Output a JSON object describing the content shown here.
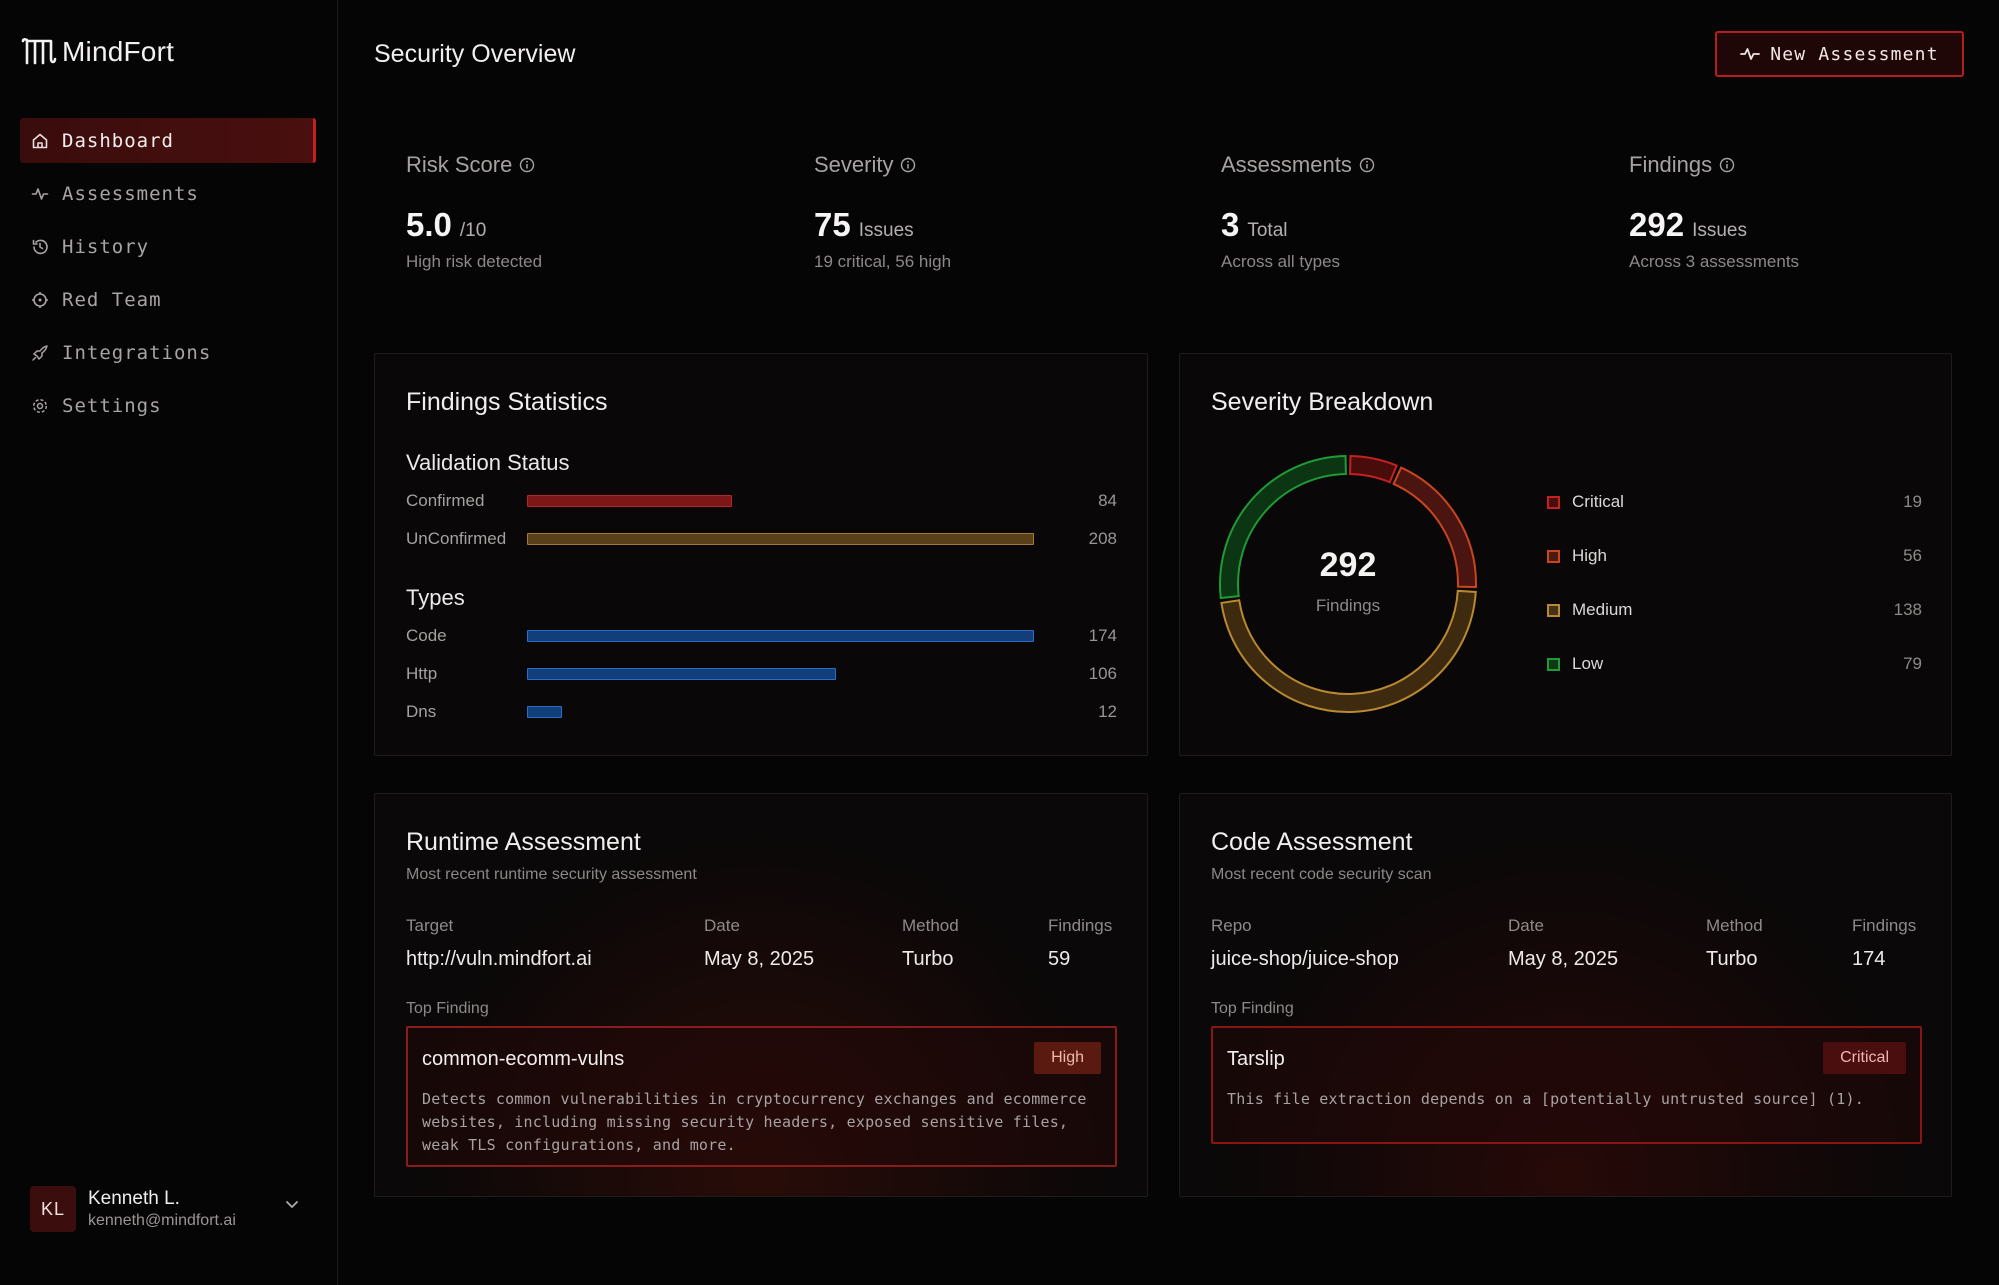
{
  "app": {
    "brand": "MindFort"
  },
  "sidebar": {
    "items": [
      {
        "label": "Dashboard",
        "icon": "home-icon",
        "active": true
      },
      {
        "label": "Assessments",
        "icon": "activity-icon",
        "active": false
      },
      {
        "label": "History",
        "icon": "history-icon",
        "active": false
      },
      {
        "label": "Red Team",
        "icon": "target-icon",
        "active": false
      },
      {
        "label": "Integrations",
        "icon": "rocket-icon",
        "active": false
      },
      {
        "label": "Settings",
        "icon": "gear-icon",
        "active": false
      }
    ],
    "user": {
      "initials": "KL",
      "name": "Kenneth L.",
      "email": "kenneth@mindfort.ai"
    }
  },
  "header": {
    "title": "Security Overview",
    "new_button": "New Assessment"
  },
  "stats": [
    {
      "label": "Risk Score",
      "value": "5.0",
      "unit": "/10",
      "sub": "High risk detected"
    },
    {
      "label": "Severity",
      "value": "75",
      "unit": "Issues",
      "sub": "19 critical, 56 high"
    },
    {
      "label": "Assessments",
      "value": "3",
      "unit": "Total",
      "sub": "Across all types"
    },
    {
      "label": "Findings",
      "value": "292",
      "unit": "Issues",
      "sub": "Across 3 assessments"
    }
  ],
  "findings_stats": {
    "title": "Findings Statistics",
    "validation_title": "Validation Status",
    "validation": [
      {
        "label": "Confirmed",
        "value": 84
      },
      {
        "label": "UnConfirmed",
        "value": 208
      }
    ],
    "types_title": "Types",
    "types": [
      {
        "label": "Code",
        "value": 174
      },
      {
        "label": "Http",
        "value": 106
      },
      {
        "label": "Dns",
        "value": 12
      }
    ]
  },
  "severity_breakdown": {
    "title": "Severity Breakdown",
    "total": "292",
    "total_label": "Findings",
    "items": [
      {
        "label": "Critical",
        "value": 19,
        "color": "#c42121"
      },
      {
        "label": "High",
        "value": 56,
        "color": "#c8451f"
      },
      {
        "label": "Medium",
        "value": 138,
        "color": "#b88932"
      },
      {
        "label": "Low",
        "value": 79,
        "color": "#1f9a35"
      }
    ]
  },
  "runtime": {
    "title": "Runtime Assessment",
    "subtitle": "Most recent runtime security assessment",
    "target_label": "Target",
    "target": "http://vuln.mindfort.ai",
    "date_label": "Date",
    "date": "May 8, 2025",
    "method_label": "Method",
    "method": "Turbo",
    "findings_label": "Findings",
    "findings": "59",
    "top_finding_label": "Top Finding",
    "finding_title": "common-ecomm-vulns",
    "finding_badge": "High",
    "finding_desc": "Detects common vulnerabilities in cryptocurrency exchanges and ecommerce websites, including missing security headers, exposed sensitive files, weak TLS configurations, and more."
  },
  "code": {
    "title": "Code Assessment",
    "subtitle": "Most recent code security scan",
    "repo_label": "Repo",
    "repo": "juice-shop/juice-shop",
    "date_label": "Date",
    "date": "May 8, 2025",
    "method_label": "Method",
    "method": "Turbo",
    "findings_label": "Findings",
    "findings": "174",
    "top_finding_label": "Top Finding",
    "finding_title": "Tarslip",
    "finding_badge": "Critical",
    "finding_desc": "This file extraction depends on a [potentially untrusted source] (1)."
  },
  "chart_data": [
    {
      "type": "bar",
      "title": "Validation Status",
      "categories": [
        "Confirmed",
        "UnConfirmed"
      ],
      "values": [
        84,
        208
      ]
    },
    {
      "type": "bar",
      "title": "Types",
      "categories": [
        "Code",
        "Http",
        "Dns"
      ],
      "values": [
        174,
        106,
        12
      ]
    },
    {
      "type": "pie",
      "title": "Severity Breakdown",
      "categories": [
        "Critical",
        "High",
        "Medium",
        "Low"
      ],
      "values": [
        19,
        56,
        138,
        79
      ]
    }
  ]
}
